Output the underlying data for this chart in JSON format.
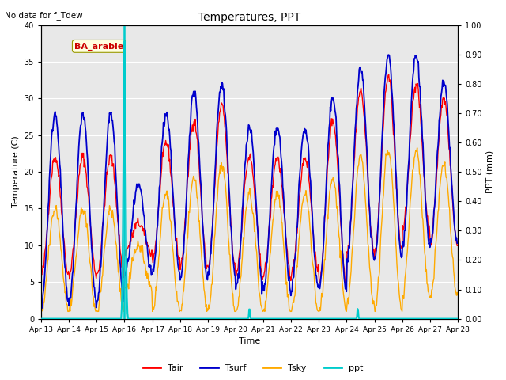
{
  "title": "Temperatures, PPT",
  "subtitle": "No data for f_Tdew",
  "xlabel": "Time",
  "ylabel_left": "Temperature (C)",
  "ylabel_right": "PPT (mm)",
  "legend_labels": [
    "Tair",
    "Tsurf",
    "Tsky",
    "ppt"
  ],
  "legend_colors": [
    "#ff0000",
    "#0000cc",
    "#ffaa00",
    "#00cccc"
  ],
  "annotation_text": "BA_arable",
  "annotation_color": "#cc0000",
  "annotation_bg": "#ffffe0",
  "line_colors": {
    "Tair": "#ff0000",
    "Tsurf": "#0000cc",
    "Tsky": "#ffaa00",
    "ppt": "#00cccc"
  },
  "ylim_left": [
    0,
    40
  ],
  "ylim_right": [
    0.0,
    1.0
  ],
  "plot_bg": "#e8e8e8",
  "xtick_labels": [
    "Apr 13",
    "Apr 14",
    "Apr 15",
    "Apr 16",
    "Apr 17",
    "Apr 18",
    "Apr 19",
    "Apr 20",
    "Apr 21",
    "Apr 22",
    "Apr 23",
    "Apr 24",
    "Apr 25",
    "Apr 26",
    "Apr 27",
    "Apr 28"
  ],
  "yticks_left": [
    0,
    5,
    10,
    15,
    20,
    25,
    30,
    35,
    40
  ],
  "yticks_right": [
    0.0,
    0.1,
    0.2,
    0.3,
    0.4,
    0.5,
    0.6,
    0.7,
    0.8,
    0.9,
    1.0
  ],
  "vline_color": "#00cccc",
  "n_points": 720
}
